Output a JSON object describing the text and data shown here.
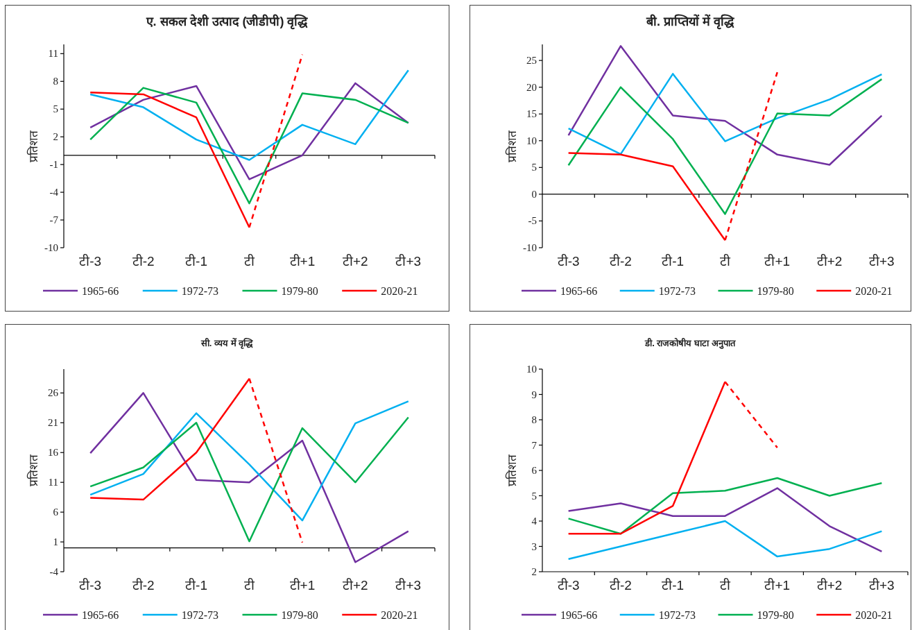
{
  "chart_data": [
    {
      "type": "line",
      "title": "ए. सकल देशी उत्पाद (जीडीपी) वृद्धि",
      "ylabel": "प्रतिशत",
      "categories": [
        "टी-3",
        "टी-2",
        "टी-1",
        "टी",
        "टी+1",
        "टी+2",
        "टी+3"
      ],
      "ylim": [
        -10,
        12
      ],
      "yticks": [
        -10,
        -7,
        -4,
        -1,
        2,
        5,
        8,
        11
      ],
      "legend": "bottom",
      "series": [
        {
          "name": "1965-66",
          "color": "#7030a0",
          "values": [
            3.0,
            6.0,
            7.5,
            -2.6,
            0.0,
            7.8,
            3.5
          ]
        },
        {
          "name": "1972-73",
          "color": "#00b0f0",
          "values": [
            6.6,
            5.2,
            1.7,
            -0.5,
            3.3,
            1.2,
            9.2
          ]
        },
        {
          "name": "1979-80",
          "color": "#00b050",
          "values": [
            1.7,
            7.3,
            5.7,
            -5.2,
            6.7,
            6.0,
            3.5
          ]
        },
        {
          "name": "2020-21",
          "color": "#ff0000",
          "values": [
            6.8,
            6.6,
            4.1,
            -7.8,
            null,
            null,
            null
          ]
        },
        {
          "color": "#ff0000",
          "line_style": "dashed",
          "values": [
            null,
            null,
            null,
            -7.8,
            10.9,
            null,
            null
          ]
        }
      ]
    },
    {
      "type": "line",
      "title": "बी. प्राप्तियों में वृद्धि",
      "ylabel": "प्रतिशत",
      "categories": [
        "टी-3",
        "टी-2",
        "टी-1",
        "टी",
        "टी+1",
        "टी+2",
        "टी+3"
      ],
      "ylim": [
        -10,
        28
      ],
      "yticks": [
        -10,
        -5,
        0,
        5,
        10,
        15,
        20,
        25
      ],
      "legend": "bottom",
      "series": [
        {
          "name": "1965-66",
          "color": "#7030a0",
          "values": [
            11.0,
            27.7,
            14.7,
            13.7,
            7.4,
            5.5,
            14.7
          ]
        },
        {
          "name": "1972-73",
          "color": "#00b0f0",
          "values": [
            12.3,
            7.5,
            22.5,
            9.9,
            14.2,
            17.7,
            22.4
          ]
        },
        {
          "name": "1979-80",
          "color": "#00b050",
          "values": [
            5.4,
            20.0,
            10.3,
            -3.7,
            15.1,
            14.7,
            21.5
          ]
        },
        {
          "name": "2020-21",
          "color": "#ff0000",
          "values": [
            7.7,
            7.4,
            5.2,
            -8.6,
            null,
            null,
            null
          ]
        },
        {
          "color": "#ff0000",
          "line_style": "dashed",
          "values": [
            null,
            null,
            null,
            -8.6,
            22.8,
            null,
            null
          ]
        }
      ]
    },
    {
      "type": "line",
      "title": "सी. व्यय में वृद्धि",
      "ylabel": "प्रतिशत",
      "categories": [
        "टी-3",
        "टी-2",
        "टी-1",
        "टी",
        "टी+1",
        "टी+2",
        "टी+3"
      ],
      "ylim": [
        -4,
        30
      ],
      "yticks": [
        -4,
        1,
        6,
        11,
        16,
        21,
        26
      ],
      "legend": "bottom",
      "series": [
        {
          "name": "1965-66",
          "color": "#7030a0",
          "values": [
            15.9,
            26.0,
            11.4,
            11.0,
            18.0,
            -2.4,
            2.8
          ]
        },
        {
          "name": "1972-73",
          "color": "#00b0f0",
          "values": [
            8.9,
            12.4,
            22.6,
            14.0,
            4.6,
            20.9,
            24.6
          ]
        },
        {
          "name": "1979-80",
          "color": "#00b050",
          "values": [
            10.3,
            13.5,
            21.0,
            1.1,
            20.1,
            11.0,
            21.9
          ]
        },
        {
          "name": "2020-21",
          "color": "#ff0000",
          "values": [
            8.4,
            8.1,
            16.0,
            28.4,
            null,
            null,
            null
          ]
        },
        {
          "color": "#ff0000",
          "line_style": "dashed",
          "values": [
            null,
            null,
            null,
            28.4,
            0.9,
            null,
            null
          ]
        }
      ]
    },
    {
      "type": "line",
      "title": "डी. राजकोषीय घाटा अनुपात",
      "ylabel": "प्रतिशत",
      "categories": [
        "टी-3",
        "टी-2",
        "टी-1",
        "टी",
        "टी+1",
        "टी+2",
        "टी+3"
      ],
      "ylim": [
        2,
        10
      ],
      "yticks": [
        2,
        3,
        4,
        5,
        6,
        7,
        8,
        9,
        10
      ],
      "legend": "bottom",
      "series": [
        {
          "name": "1965-66",
          "color": "#7030a0",
          "values": [
            4.4,
            4.7,
            4.2,
            4.2,
            5.3,
            3.8,
            2.8
          ]
        },
        {
          "name": "1972-73",
          "color": "#00b0f0",
          "values": [
            2.5,
            3.0,
            3.5,
            4.0,
            2.6,
            2.9,
            3.6
          ]
        },
        {
          "name": "1979-80",
          "color": "#00b050",
          "values": [
            4.1,
            3.5,
            5.1,
            5.2,
            5.7,
            5.0,
            5.5
          ]
        },
        {
          "name": "2020-21",
          "color": "#ff0000",
          "values": [
            3.5,
            3.5,
            4.6,
            9.5,
            null,
            null,
            null
          ]
        },
        {
          "color": "#ff0000",
          "line_style": "dashed",
          "values": [
            null,
            null,
            null,
            9.5,
            6.9,
            null,
            null
          ]
        }
      ]
    }
  ]
}
